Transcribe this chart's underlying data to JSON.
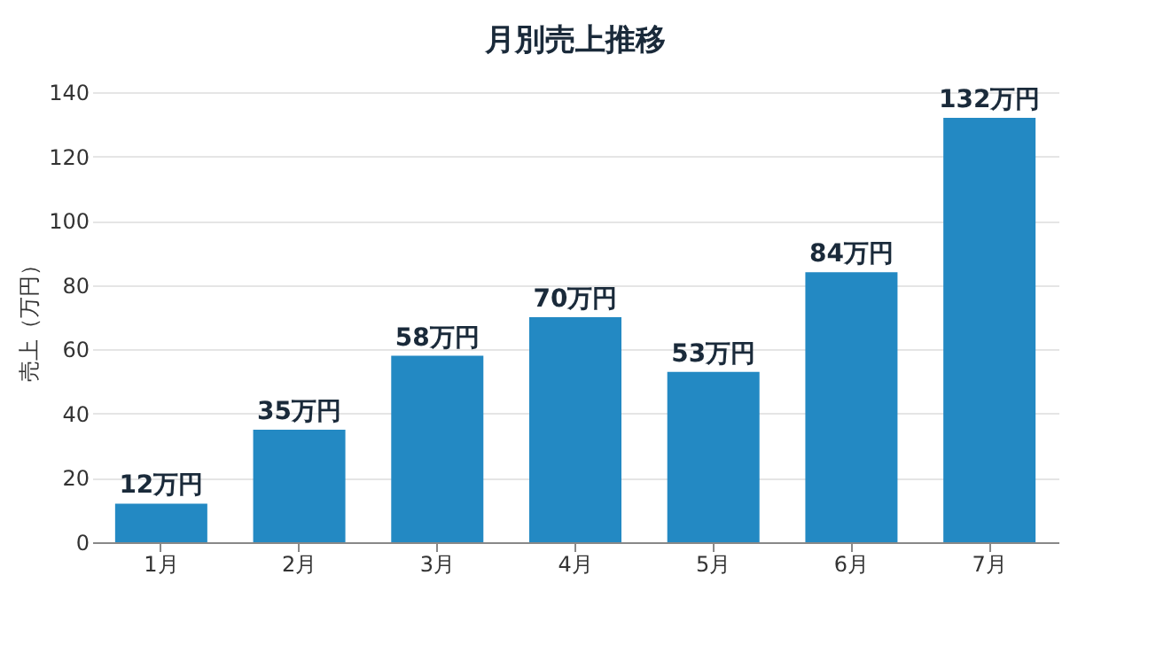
{
  "chart_data": {
    "type": "bar",
    "title": "月別売上推移",
    "ylabel": "売上（万円）",
    "categories": [
      "1月",
      "2月",
      "3月",
      "4月",
      "5月",
      "6月",
      "7月"
    ],
    "values": [
      12,
      35,
      58,
      70,
      53,
      84,
      132
    ],
    "value_labels": [
      "12万円",
      "35万円",
      "58万円",
      "70万円",
      "53万円",
      "84万円",
      "132万円"
    ],
    "color": "#2389c3",
    "ylim": [
      0,
      140
    ],
    "yticks": [
      0,
      20,
      40,
      60,
      80,
      100,
      120,
      140
    ],
    "grid": "y"
  }
}
